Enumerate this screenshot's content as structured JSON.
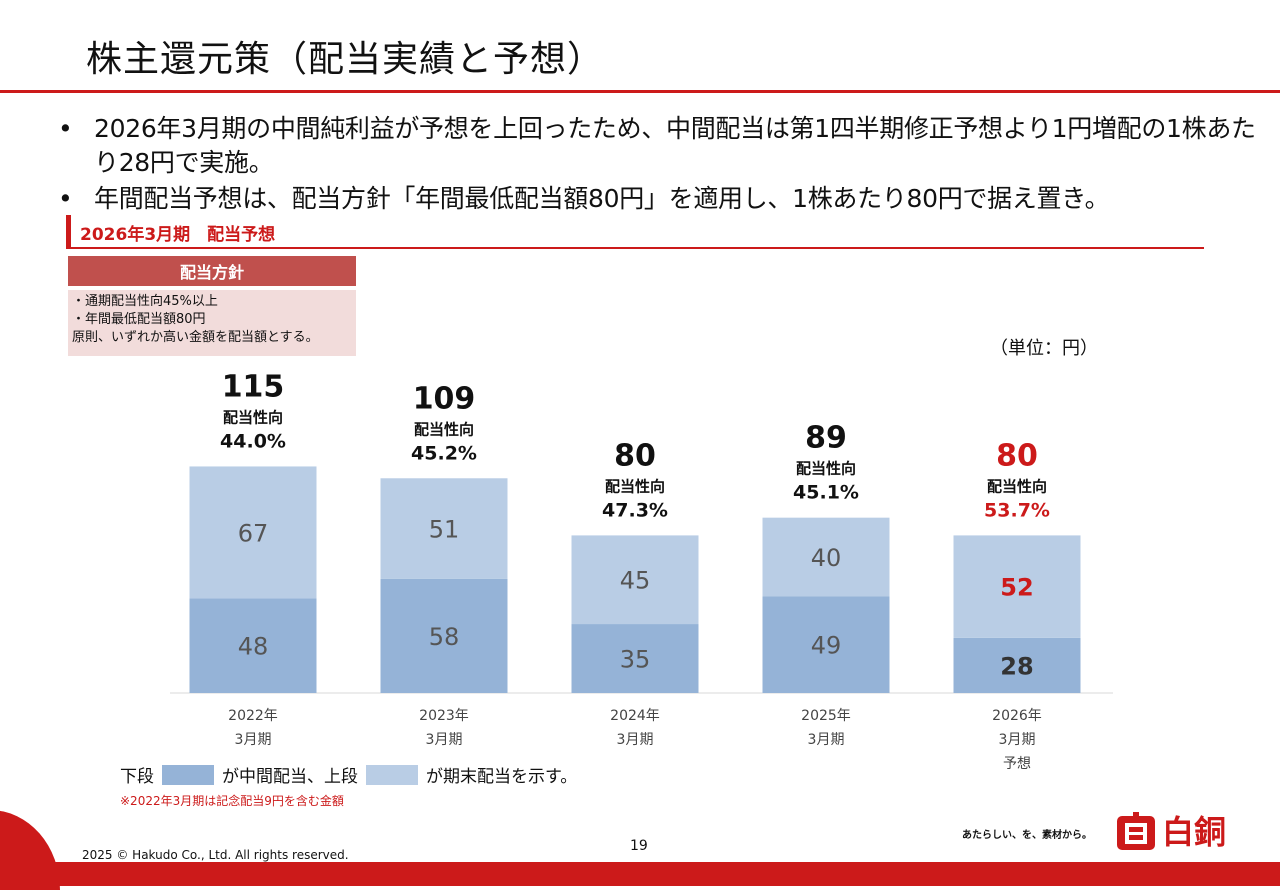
{
  "page": {
    "title": "株主還元策（配当実績と予想）",
    "bullets": [
      "2026年3月期の中間純利益が予想を上回ったため、中間配当は第1四半期修正予想より1円増配の1株あたり28円で実施。",
      "年間配当予想は、配当方針「年間最低配当額80円」を適用し、1株あたり80円で据え置き。"
    ],
    "bullet_mark": "•",
    "section_title": "2026年3月期　配当予想",
    "policy": {
      "heading": "配当方針",
      "lines": [
        "・通期配当性向45%以上",
        "・年間最低配当額80円",
        "原則、いずれか高い金額を配当額とする。"
      ]
    },
    "unit": "（単位：円）",
    "legend": {
      "prefix": "下段",
      "middle": "が中間配当、上段",
      "suffix": "が期末配当を示す。"
    },
    "note": "※2022年3月期は記念配当9円を含む金額",
    "page_number": "19",
    "copyright": "2025 © Hakudo Co., Ltd. All rights reserved.",
    "tagline": "あたらしい、を、素材から。",
    "logo": "白銅",
    "logo_mark": "白"
  },
  "colors": {
    "accent": "#cc1a1a",
    "lower": "#95b3d7",
    "upper": "#b9cde5",
    "policy_head": "#c0504d",
    "policy_body": "#f2dcdb",
    "forecast_text": "#cc1a1a"
  },
  "chart_data": {
    "type": "bar",
    "stacked": true,
    "categories": [
      [
        "2022年",
        "3月期"
      ],
      [
        "2023年",
        "3月期"
      ],
      [
        "2024年",
        "3月期"
      ],
      [
        "2025年",
        "3月期"
      ],
      [
        "2026年",
        "3月期",
        "予想"
      ]
    ],
    "series": [
      {
        "name": "中間配当",
        "values": [
          48,
          58,
          35,
          49,
          28
        ]
      },
      {
        "name": "期末配当",
        "values": [
          67,
          51,
          45,
          40,
          52
        ]
      }
    ],
    "totals": [
      "115",
      "109",
      "80",
      "89",
      "80"
    ],
    "payout_label": "配当性向",
    "payout_ratios": [
      "44.0%",
      "45.2%",
      "47.3%",
      "45.1%",
      "53.7%"
    ],
    "forecast_index": 4,
    "ylim": [
      0,
      130
    ]
  }
}
